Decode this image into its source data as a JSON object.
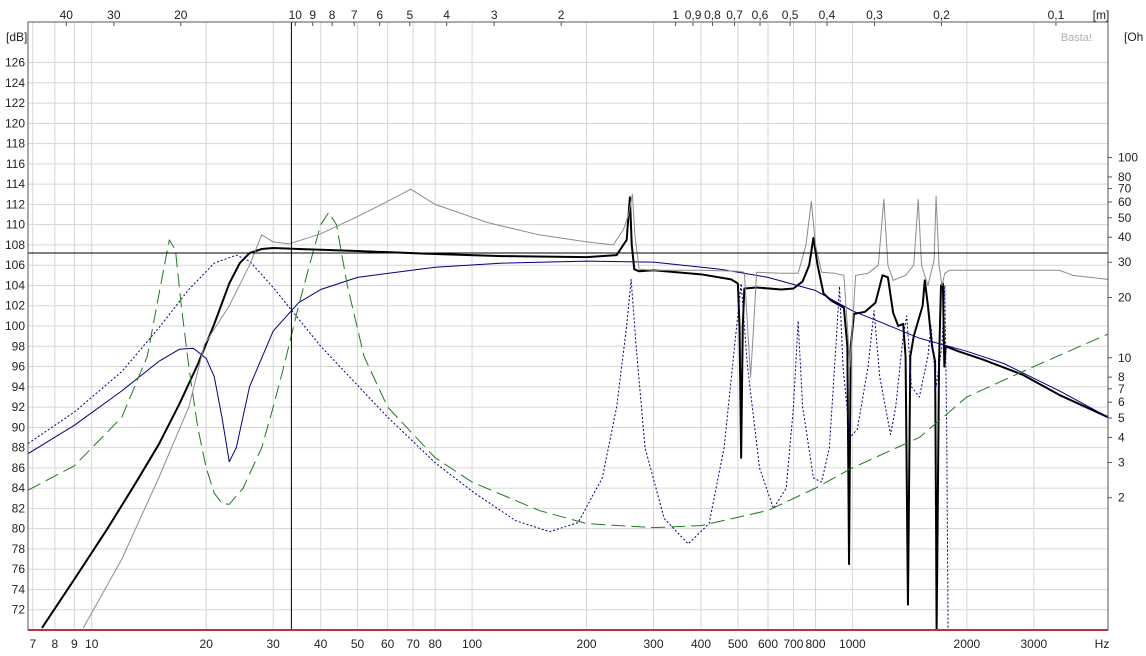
{
  "chart_data": {
    "type": "line",
    "watermark": "Basta!",
    "x_axis": {
      "scale": "log",
      "range": [
        6.8,
        4700
      ],
      "unit": "Hz",
      "ticks": [
        7,
        8,
        9,
        10,
        20,
        30,
        40,
        50,
        60,
        70,
        80,
        100,
        200,
        300,
        400,
        500,
        600,
        700,
        800,
        1000,
        2000,
        3000
      ],
      "tick_labels": [
        "7",
        "8",
        "9",
        "10",
        "20",
        "30",
        "40",
        "50",
        "60",
        "70",
        "80",
        "100",
        "200",
        "300",
        "400",
        "500",
        "600",
        "700",
        "800",
        "1000",
        "2000",
        "3000"
      ]
    },
    "top_axis": {
      "unit": "[m]",
      "ticks": [
        40,
        30,
        20,
        10,
        9,
        8,
        7,
        6,
        5,
        4,
        3,
        2,
        1,
        0.9,
        0.8,
        0.7,
        0.6,
        0.5,
        0.4,
        0.3,
        0.2,
        0.1
      ],
      "tick_labels": [
        "40",
        "30",
        "20",
        "10",
        "9",
        "8",
        "7",
        "6",
        "5",
        "4",
        "3",
        "2",
        "1",
        "0,9",
        "0,8",
        "0,7",
        "0,6",
        "0,5",
        "0,4",
        "0,3",
        "0,2",
        "0,1"
      ]
    },
    "y_left": {
      "unit": "[dB]",
      "range": [
        70,
        130
      ],
      "ticks": [
        72,
        74,
        76,
        78,
        80,
        82,
        84,
        86,
        88,
        90,
        92,
        94,
        96,
        98,
        100,
        102,
        104,
        106,
        108,
        110,
        112,
        114,
        116,
        118,
        120,
        122,
        124,
        126
      ]
    },
    "y_right": {
      "unit": "[Oh",
      "scale": "log",
      "ticks": [
        2,
        3,
        4,
        5,
        6,
        7,
        8,
        10,
        20,
        30,
        40,
        50,
        60,
        70,
        80,
        100
      ],
      "tick_labels": [
        "2",
        "3",
        "4",
        "5",
        "6",
        "7",
        "8",
        "10",
        "20",
        "30",
        "40",
        "50",
        "60",
        "70",
        "80",
        "100"
      ]
    },
    "grid": true,
    "cursor": {
      "x": 33.5,
      "y": 107.2
    },
    "series": [
      {
        "color": "#000000",
        "style": "solid",
        "width": 2,
        "points": [
          [
            7.4,
            70.2
          ],
          [
            9,
            75
          ],
          [
            11,
            80
          ],
          [
            13,
            84.4
          ],
          [
            15,
            88.3
          ],
          [
            17,
            92.3
          ],
          [
            19,
            96.2
          ],
          [
            21,
            100.2
          ],
          [
            23,
            104.2
          ],
          [
            24.5,
            106.2
          ],
          [
            26,
            107.2
          ],
          [
            28,
            107.6
          ],
          [
            30,
            107.7
          ],
          [
            35,
            107.6
          ],
          [
            50,
            107.4
          ],
          [
            80,
            107.1
          ],
          [
            120,
            106.9
          ],
          [
            200,
            106.8
          ],
          [
            240,
            107
          ],
          [
            255,
            108.5
          ],
          [
            260,
            112.7
          ],
          [
            263,
            108
          ],
          [
            267,
            105.6
          ],
          [
            275,
            105.4
          ],
          [
            300,
            105.5
          ],
          [
            400,
            105.1
          ],
          [
            480,
            104.6
          ],
          [
            500,
            104.2
          ],
          [
            505,
            100
          ],
          [
            510,
            87
          ],
          [
            515,
            100
          ],
          [
            520,
            103.7
          ],
          [
            560,
            103.8
          ],
          [
            650,
            103.6
          ],
          [
            700,
            103.7
          ],
          [
            740,
            104.4
          ],
          [
            770,
            106
          ],
          [
            790,
            108.7
          ],
          [
            810,
            106
          ],
          [
            840,
            103.2
          ],
          [
            880,
            102.5
          ],
          [
            950,
            101.8
          ],
          [
            970,
            98
          ],
          [
            980,
            76.5
          ],
          [
            990,
            98
          ],
          [
            1010,
            101.2
          ],
          [
            1080,
            101.4
          ],
          [
            1150,
            102.3
          ],
          [
            1200,
            105
          ],
          [
            1240,
            104.8
          ],
          [
            1280,
            101.3
          ],
          [
            1320,
            100
          ],
          [
            1360,
            100.2
          ],
          [
            1380,
            97
          ],
          [
            1400,
            72.5
          ],
          [
            1420,
            97
          ],
          [
            1450,
            99
          ],
          [
            1530,
            102
          ],
          [
            1550,
            104.5
          ],
          [
            1580,
            102
          ],
          [
            1620,
            98
          ],
          [
            1650,
            96.5
          ],
          [
            1660,
            80
          ],
          [
            1665,
            70
          ],
          [
            1675,
            80
          ],
          [
            1690,
            96.5
          ],
          [
            1710,
            104
          ],
          [
            1730,
            104.2
          ],
          [
            1745,
            96
          ],
          [
            1760,
            98
          ],
          [
            1900,
            97.5
          ],
          [
            2200,
            96.7
          ],
          [
            2800,
            95.2
          ],
          [
            3500,
            93.2
          ],
          [
            4700,
            91
          ]
        ]
      },
      {
        "color": "#000080",
        "style": "solid",
        "width": 1,
        "points": [
          [
            6.8,
            87.4
          ],
          [
            9,
            90.2
          ],
          [
            12,
            93.6
          ],
          [
            15,
            96.5
          ],
          [
            17,
            97.7
          ],
          [
            18.5,
            97.8
          ],
          [
            20,
            96.8
          ],
          [
            21,
            95
          ],
          [
            22,
            91
          ],
          [
            23,
            86.6
          ],
          [
            24,
            88
          ],
          [
            26,
            94
          ],
          [
            30,
            99.5
          ],
          [
            35,
            102.3
          ],
          [
            40,
            103.6
          ],
          [
            50,
            104.8
          ],
          [
            80,
            105.8
          ],
          [
            120,
            106.2
          ],
          [
            200,
            106.4
          ],
          [
            300,
            106.3
          ],
          [
            450,
            105.6
          ],
          [
            600,
            104.8
          ],
          [
            800,
            103.5
          ],
          [
            1000,
            101.5
          ],
          [
            1200,
            100.3
          ],
          [
            1500,
            98.8
          ],
          [
            2000,
            97.5
          ],
          [
            2500,
            96.3
          ],
          [
            3500,
            93.6
          ],
          [
            4700,
            91
          ]
        ]
      },
      {
        "color": "#000080",
        "style": "dotted",
        "width": 1,
        "points": [
          [
            6.8,
            88.4
          ],
          [
            9,
            91.5
          ],
          [
            12,
            95.5
          ],
          [
            15,
            99.8
          ],
          [
            18,
            103.6
          ],
          [
            21,
            106.2
          ],
          [
            24,
            107
          ],
          [
            26,
            106.4
          ],
          [
            30,
            103.8
          ],
          [
            40,
            98
          ],
          [
            60,
            91
          ],
          [
            80,
            86.5
          ],
          [
            100,
            83.7
          ],
          [
            130,
            80.8
          ],
          [
            160,
            79.7
          ],
          [
            190,
            80.6
          ],
          [
            220,
            85
          ],
          [
            240,
            92
          ],
          [
            255,
            100
          ],
          [
            262,
            104.6
          ],
          [
            270,
            98
          ],
          [
            285,
            88
          ],
          [
            320,
            81
          ],
          [
            370,
            78.5
          ],
          [
            420,
            80.5
          ],
          [
            460,
            88
          ],
          [
            490,
            98
          ],
          [
            510,
            104.2
          ],
          [
            530,
            96
          ],
          [
            570,
            86
          ],
          [
            620,
            82
          ],
          [
            670,
            84
          ],
          [
            700,
            92
          ],
          [
            720,
            100.5
          ],
          [
            740,
            92
          ],
          [
            790,
            85
          ],
          [
            830,
            84.6
          ],
          [
            870,
            88
          ],
          [
            905,
            98
          ],
          [
            925,
            103.9
          ],
          [
            945,
            96
          ],
          [
            985,
            89
          ],
          [
            1030,
            89.8
          ],
          [
            1100,
            96
          ],
          [
            1140,
            101.5
          ],
          [
            1180,
            95
          ],
          [
            1260,
            89.3
          ],
          [
            1300,
            92
          ],
          [
            1360,
            99
          ],
          [
            1390,
            101
          ],
          [
            1430,
            94
          ],
          [
            1500,
            93
          ],
          [
            1580,
            97
          ],
          [
            1610,
            100
          ],
          [
            1660,
            94
          ],
          [
            1720,
            98
          ],
          [
            1750,
            104
          ],
          [
            1770,
            90
          ],
          [
            1785,
            70
          ]
        ]
      },
      {
        "color": "#1e7a1e",
        "style": "dashed",
        "width": 1,
        "points": [
          [
            6.8,
            83.8
          ],
          [
            9,
            86.2
          ],
          [
            12,
            91
          ],
          [
            14,
            97
          ],
          [
            15,
            103
          ],
          [
            16,
            108.5
          ],
          [
            16.6,
            107.5
          ],
          [
            17.2,
            102
          ],
          [
            18,
            96
          ],
          [
            19,
            90
          ],
          [
            20,
            86
          ],
          [
            21,
            83.5
          ],
          [
            22,
            82.5
          ],
          [
            23,
            82.4
          ],
          [
            25,
            84
          ],
          [
            28,
            88
          ],
          [
            30,
            92
          ],
          [
            32,
            96
          ],
          [
            35,
            102
          ],
          [
            38,
            107
          ],
          [
            40,
            110
          ],
          [
            42,
            111.2
          ],
          [
            44,
            110
          ],
          [
            47,
            104
          ],
          [
            52,
            97
          ],
          [
            60,
            92
          ],
          [
            80,
            87
          ],
          [
            100,
            84.6
          ],
          [
            150,
            81.8
          ],
          [
            200,
            80.5
          ],
          [
            300,
            80.1
          ],
          [
            400,
            80.3
          ],
          [
            600,
            81.8
          ],
          [
            800,
            84
          ],
          [
            1000,
            86
          ],
          [
            1500,
            89
          ],
          [
            2000,
            93
          ],
          [
            3000,
            96
          ],
          [
            4700,
            99.2
          ]
        ]
      },
      {
        "color": "#8c8c8c",
        "style": "solid",
        "width": 1,
        "points": [
          [
            9.5,
            70.2
          ],
          [
            12,
            77
          ],
          [
            15,
            85
          ],
          [
            18,
            92
          ],
          [
            19.8,
            98.2
          ],
          [
            23,
            102
          ],
          [
            26,
            106
          ],
          [
            28,
            109
          ],
          [
            30,
            108.3
          ],
          [
            33,
            108.1
          ],
          [
            40,
            109.1
          ],
          [
            50,
            110.8
          ],
          [
            60,
            112.3
          ],
          [
            69,
            113.5
          ],
          [
            80,
            112
          ],
          [
            110,
            110.2
          ],
          [
            150,
            109
          ],
          [
            200,
            108.3
          ],
          [
            235,
            108
          ],
          [
            250,
            109.5
          ],
          [
            258,
            111
          ],
          [
            264,
            113
          ],
          [
            268,
            109
          ],
          [
            275,
            105.6
          ],
          [
            300,
            105.5
          ],
          [
            400,
            105.5
          ],
          [
            500,
            105.4
          ],
          [
            520,
            105.3
          ],
          [
            530,
            100
          ],
          [
            540,
            95
          ],
          [
            550,
            100
          ],
          [
            560,
            105.3
          ],
          [
            650,
            105.2
          ],
          [
            720,
            105.2
          ],
          [
            755,
            108
          ],
          [
            780,
            112.3
          ],
          [
            800,
            108
          ],
          [
            830,
            105.3
          ],
          [
            900,
            105.2
          ],
          [
            950,
            105
          ],
          [
            970,
            100
          ],
          [
            985,
            96
          ],
          [
            1000,
            100
          ],
          [
            1020,
            105
          ],
          [
            1100,
            105.2
          ],
          [
            1170,
            106
          ],
          [
            1210,
            112.5
          ],
          [
            1240,
            106
          ],
          [
            1280,
            104.5
          ],
          [
            1380,
            105
          ],
          [
            1450,
            106
          ],
          [
            1490,
            112.5
          ],
          [
            1520,
            106
          ],
          [
            1580,
            104
          ],
          [
            1640,
            106.5
          ],
          [
            1660,
            112.8
          ],
          [
            1690,
            106
          ],
          [
            1720,
            104
          ],
          [
            1750,
            105.2
          ],
          [
            1800,
            105.5
          ],
          [
            3500,
            105.5
          ],
          [
            3800,
            105
          ],
          [
            4700,
            104.6
          ]
        ]
      }
    ]
  }
}
